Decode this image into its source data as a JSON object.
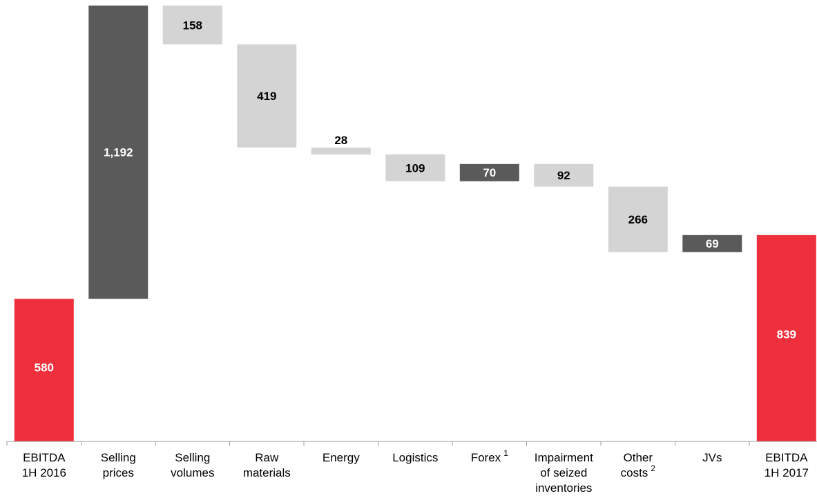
{
  "chart_data": {
    "type": "waterfall",
    "unit_scale": "linear",
    "ylim": [
      0,
      1300
    ],
    "grid": false,
    "legend": "none",
    "categories": [
      {
        "label": [
          "EBITDA",
          "1H 2016"
        ],
        "sup": ""
      },
      {
        "label": [
          "Selling",
          "prices"
        ],
        "sup": ""
      },
      {
        "label": [
          "Selling",
          "volumes"
        ],
        "sup": ""
      },
      {
        "label": [
          "Raw",
          "materials"
        ],
        "sup": ""
      },
      {
        "label": [
          "Energy"
        ],
        "sup": ""
      },
      {
        "label": [
          "Logistics"
        ],
        "sup": ""
      },
      {
        "label": [
          "Forex"
        ],
        "sup": "1"
      },
      {
        "label": [
          "Impairment",
          "of seized",
          "inventories"
        ],
        "sup": ""
      },
      {
        "label": [
          "Other",
          "costs"
        ],
        "sup": "2"
      },
      {
        "label": [
          "JVs"
        ],
        "sup": ""
      },
      {
        "label": [
          "EBITDA",
          "1H 2017"
        ],
        "sup": ""
      }
    ],
    "bars": [
      {
        "value": 580,
        "display": "580",
        "kind": "total",
        "color": "#ee2f3c"
      },
      {
        "value": 1192,
        "display": "1,192",
        "kind": "increase",
        "color": "#5a5a5a"
      },
      {
        "value": -158,
        "display": "158",
        "kind": "decrease",
        "color": "#d4d4d4"
      },
      {
        "value": -419,
        "display": "419",
        "kind": "decrease",
        "color": "#d4d4d4"
      },
      {
        "value": -28,
        "display": "28",
        "kind": "decrease",
        "color": "#d4d4d4"
      },
      {
        "value": -109,
        "display": "109",
        "kind": "decrease",
        "color": "#d4d4d4"
      },
      {
        "value": 70,
        "display": "70",
        "kind": "increase",
        "color": "#5a5a5a"
      },
      {
        "value": -92,
        "display": "92",
        "kind": "decrease",
        "color": "#d4d4d4"
      },
      {
        "value": -266,
        "display": "266",
        "kind": "decrease",
        "color": "#d4d4d4"
      },
      {
        "value": 69,
        "display": "69",
        "kind": "increase",
        "color": "#5a5a5a"
      },
      {
        "value": 839,
        "display": "839",
        "kind": "total",
        "color": "#ee2f3c"
      }
    ],
    "colors": {
      "total": "#ee2f3c",
      "increase": "#5a5a5a",
      "decrease": "#d4d4d4",
      "axis": "#999999"
    }
  }
}
